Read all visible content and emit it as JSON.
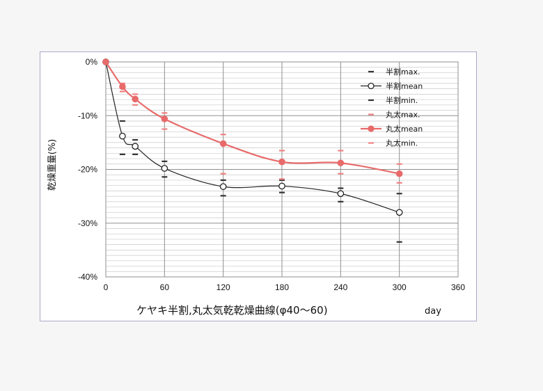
{
  "chart_data": {
    "type": "line",
    "title": "",
    "xlabel": "ケヤキ半割,丸太気乾乾燥曲線(φ40～60)",
    "xunit": "day",
    "ylabel": "乾燥重量(%)",
    "xlim": [
      0,
      360
    ],
    "ylim": [
      -40,
      0
    ],
    "xticks": [
      "0",
      "60",
      "120",
      "180",
      "240",
      "300",
      "360"
    ],
    "yticks": [
      "0%",
      "-10%",
      "-20%",
      "-30%",
      "-40%"
    ],
    "grid": true,
    "legend_position": "top-right",
    "x": [
      0,
      17,
      30,
      60,
      120,
      180,
      240,
      300
    ],
    "series": [
      {
        "name": "半割max.",
        "color": "#333333",
        "marker": "dash",
        "values": [
          0,
          -11,
          -14.5,
          -18.5,
          -22,
          -22,
          -23.5,
          -24.5
        ]
      },
      {
        "name": "半割mean",
        "color": "#222222",
        "marker": "open-circle",
        "values": [
          0,
          -13.8,
          -15.7,
          -19.8,
          -23.2,
          -23.1,
          -24.5,
          -28.0
        ]
      },
      {
        "name": "半割min.",
        "color": "#333333",
        "marker": "dash",
        "values": [
          0,
          -17.2,
          -17.2,
          -21.4,
          -24.9,
          -24.3,
          -26.0,
          -33.5
        ]
      },
      {
        "name": "丸太max.",
        "color": "#f08080",
        "marker": "dash",
        "values": [
          0,
          -4.0,
          -6.0,
          -9.5,
          -13.5,
          -16.5,
          -16.5,
          -19.0
        ]
      },
      {
        "name": "丸太mean",
        "color": "#e86a6a",
        "marker": "filled-circle",
        "values": [
          0,
          -4.6,
          -6.9,
          -10.6,
          -15.2,
          -18.6,
          -18.8,
          -20.8
        ]
      },
      {
        "name": "丸太min.",
        "color": "#f08080",
        "marker": "dash",
        "values": [
          0,
          -5.5,
          -8.0,
          -12.5,
          -20.8,
          -21.8,
          -20.8,
          -22.5
        ]
      }
    ]
  }
}
